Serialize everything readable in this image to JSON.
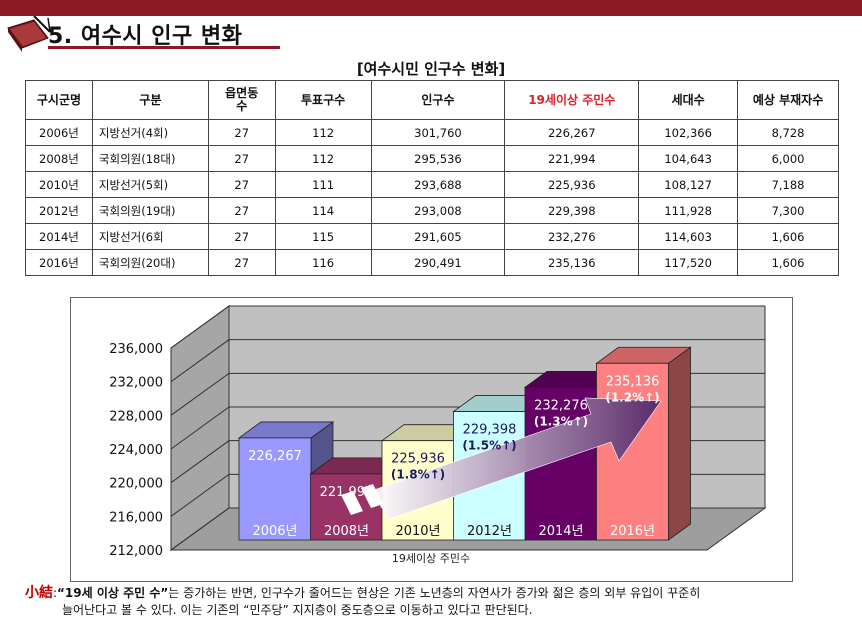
{
  "section_title": "5. 여수시 인구 변화",
  "table_title": "[여수시민 인구수 변화]",
  "table": {
    "headers": [
      "구시군명",
      "구분",
      "읍면동 수",
      "투표구수",
      "인구수",
      "19세이상 주민수",
      "세대수",
      "예상 부재자수"
    ],
    "rows": [
      [
        "2006년",
        "지방선거(4회)",
        "27",
        "112",
        "301,760",
        "226,267",
        "102,366",
        "8,728"
      ],
      [
        "2008년",
        "국회의원(18대)",
        "27",
        "112",
        "295,536",
        "221,994",
        "104,643",
        "6,000"
      ],
      [
        "2010년",
        "지방선거(5회)",
        "27",
        "111",
        "293,688",
        "225,936",
        "108,127",
        "7,188"
      ],
      [
        "2012년",
        "국회의원(19대)",
        "27",
        "114",
        "293,008",
        "229,398",
        "111,928",
        "7,300"
      ],
      [
        "2014년",
        "지방선거(6회",
        "27",
        "115",
        "291,605",
        "232,276",
        "114,603",
        "1,606"
      ],
      [
        "2016년",
        "국회의원(20대)",
        "27",
        "116",
        "290,491",
        "235,136",
        "117,520",
        "1,606"
      ]
    ]
  },
  "chart_data": {
    "type": "bar",
    "categories": [
      "2006년",
      "2008년",
      "2010년",
      "2012년",
      "2014년",
      "2016년"
    ],
    "values": [
      226267,
      221994,
      225936,
      229398,
      232276,
      235136
    ],
    "value_labels": [
      "226,267",
      "221,994",
      "225,936",
      "229,398",
      "232,276",
      "235,136"
    ],
    "change_labels": [
      "",
      "",
      "(1.8%↑)",
      "(1.5%↑)",
      "(1.3%↑)",
      "(1.2%↑)"
    ],
    "ylim": [
      212000,
      236000
    ],
    "yticks": [
      212000,
      216000,
      220000,
      224000,
      228000,
      232000,
      236000
    ],
    "ytick_labels": [
      "212,000",
      "216,000",
      "220,000",
      "224,000",
      "228,000",
      "232,000",
      "236,000"
    ],
    "xlabel": "19세이상 주민수",
    "bar_colors": [
      "#9999ff",
      "#993366",
      "#ffffcc",
      "#ccffff",
      "#660066",
      "#ff8080"
    ],
    "value_label_colors": [
      "#ffffff",
      "#ffffff",
      "#1a1a66",
      "#1a1a66",
      "#ffffff",
      "#ffffff"
    ],
    "category_label_colors": [
      "#ffffff",
      "#ffffff",
      "#111111",
      "#111111",
      "#ffffff",
      "#ffffff"
    ],
    "grid": true,
    "trend_arrow": true
  },
  "note": {
    "lead": "小結",
    "quoted_strong": "“19세 이상 주민 수”",
    "text1": "는 증가하는 반면, 인구수가 줄어드는 현상은 기존 노년층의 자연사가 증가와 젊은 층의 외부 유입이 꾸준히",
    "text2": "늘어난다고 볼 수 있다. 이는 기존의 “민주당” 지지층이 중도층으로 이동하고 있다고 판단된다."
  }
}
